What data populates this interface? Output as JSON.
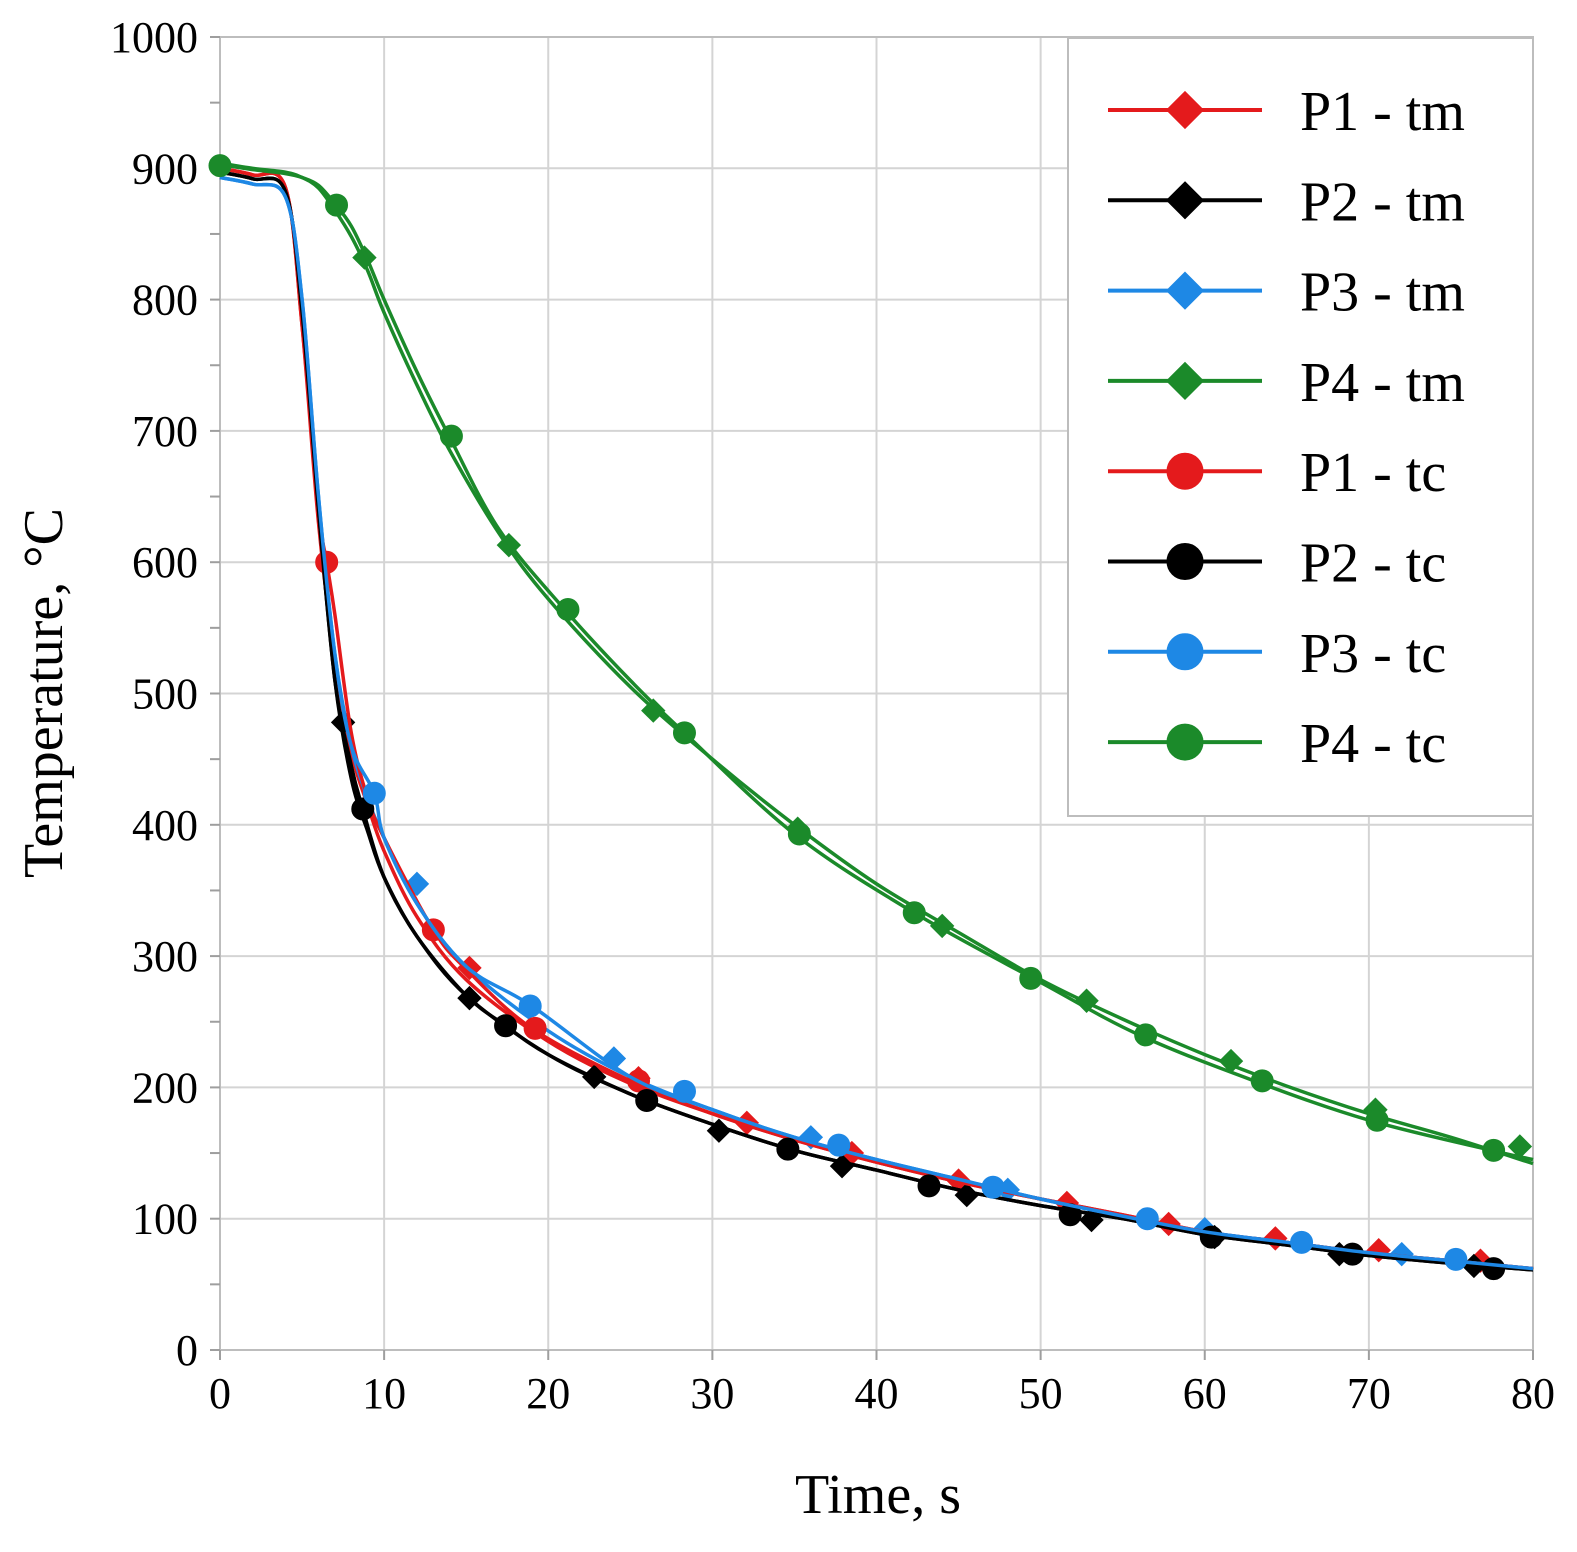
{
  "chart_data": {
    "type": "line",
    "xlabel": "Time, s",
    "ylabel": "Temperature, °C",
    "xlim": [
      0,
      80
    ],
    "ylim": [
      0,
      1000
    ],
    "xticks": [
      0,
      10,
      20,
      30,
      40,
      50,
      60,
      70,
      80
    ],
    "yticks": [
      0,
      100,
      200,
      300,
      400,
      500,
      600,
      700,
      800,
      900,
      1000
    ],
    "grid": true,
    "legend_position": "top-right",
    "series": [
      {
        "name": "P1 - tm",
        "color": "#e41a1c",
        "marker": "diamond",
        "x": [
          0,
          2,
          4,
          5,
          6,
          7,
          8,
          9,
          10,
          12,
          15,
          20,
          25,
          30,
          35,
          40,
          45,
          50,
          55,
          60,
          65,
          70,
          75,
          80
        ],
        "y": [
          900,
          895,
          885,
          780,
          630,
          525,
          455,
          415,
          380,
          330,
          282,
          235,
          203,
          180,
          160,
          143,
          128,
          115,
          103,
          90,
          82,
          74,
          68,
          62
        ],
        "marker_x": [
          15.2,
          25.5,
          32.1,
          38.5,
          45.0,
          51.6,
          57.8,
          64.3,
          70.6,
          76.8
        ],
        "marker_y": [
          291,
          207,
          173,
          150,
          129,
          112,
          96,
          85,
          76,
          68
        ]
      },
      {
        "name": "P2 - tm",
        "color": "#000000",
        "marker": "diamond",
        "x": [
          0,
          2,
          4,
          5,
          6,
          7,
          8,
          9,
          10,
          12,
          15,
          20,
          25,
          30,
          35,
          40,
          45,
          50,
          55,
          60,
          65,
          70,
          75,
          80
        ],
        "y": [
          897,
          892,
          882,
          790,
          640,
          510,
          435,
          395,
          360,
          315,
          270,
          225,
          195,
          172,
          152,
          137,
          122,
          110,
          100,
          88,
          80,
          72,
          66,
          61
        ],
        "marker_x": [
          7.5,
          15.2,
          22.8,
          30.4,
          37.9,
          45.5,
          53.1,
          60.6,
          68.2,
          76.4
        ],
        "marker_y": [
          478,
          268,
          208,
          167,
          140,
          118,
          99,
          86,
          73,
          64
        ]
      },
      {
        "name": "P3 - tm",
        "color": "#1e88e5",
        "marker": "diamond",
        "x": [
          0,
          2,
          4,
          5,
          6,
          7,
          8,
          9,
          10,
          12,
          15,
          20,
          25,
          30,
          35,
          40,
          45,
          50,
          55,
          60,
          65,
          70,
          75,
          80
        ],
        "y": [
          893,
          888,
          878,
          800,
          650,
          530,
          460,
          420,
          390,
          340,
          292,
          243,
          208,
          183,
          162,
          145,
          130,
          115,
          102,
          90,
          82,
          74,
          68,
          62
        ],
        "marker_x": [
          12.0,
          24.0,
          36.0,
          48.0,
          60.0,
          72.0
        ],
        "marker_y": [
          355,
          222,
          162,
          122,
          92,
          73
        ]
      },
      {
        "name": "P4 - tm",
        "color": "#1b8a2a",
        "marker": "diamond",
        "x": [
          0,
          2,
          4,
          5,
          6,
          7,
          8,
          9,
          10,
          12,
          14,
          17,
          20,
          25,
          30,
          35,
          40,
          45,
          50,
          55,
          60,
          65,
          70,
          75,
          80
        ],
        "y": [
          904,
          900,
          897,
          893,
          885,
          868,
          848,
          822,
          790,
          735,
          685,
          622,
          572,
          505,
          450,
          400,
          355,
          318,
          282,
          252,
          225,
          201,
          180,
          162,
          142
        ],
        "marker_x": [
          8.8,
          17.6,
          26.4,
          35.2,
          44.0,
          52.8,
          61.6,
          70.4,
          79.2
        ],
        "marker_y": [
          832,
          613,
          487,
          397,
          323,
          266,
          220,
          183,
          155
        ]
      },
      {
        "name": "P1 - tc",
        "color": "#e41a1c",
        "marker": "circle",
        "x": [
          0,
          2,
          4,
          5,
          6,
          6.5,
          7,
          8,
          9,
          10,
          13,
          15,
          19,
          25,
          30,
          35,
          40,
          45,
          50,
          55,
          60,
          65,
          70,
          75,
          80
        ],
        "y": [
          900,
          895,
          885,
          780,
          640,
          600,
          560,
          470,
          420,
          390,
          320,
          290,
          245,
          205,
          180,
          160,
          143,
          128,
          115,
          103,
          90,
          82,
          74,
          68,
          62
        ],
        "marker_x": [
          6.5,
          13.0,
          19.2,
          25.5
        ],
        "marker_y": [
          600,
          320,
          245,
          205
        ]
      },
      {
        "name": "P2 - tc",
        "color": "#000000",
        "marker": "circle",
        "x": [
          0,
          2,
          4,
          5,
          6,
          7,
          8,
          8.7,
          10,
          12,
          15,
          17.4,
          20,
          25,
          30,
          35,
          40,
          45,
          50,
          55,
          60,
          65,
          70,
          75,
          80
        ],
        "y": [
          897,
          892,
          882,
          790,
          640,
          510,
          445,
          412,
          360,
          315,
          270,
          247,
          225,
          195,
          172,
          152,
          137,
          122,
          110,
          100,
          88,
          80,
          72,
          66,
          61
        ],
        "marker_x": [
          8.7,
          17.4,
          26.0,
          34.6,
          43.2,
          51.8,
          60.4,
          69.0,
          77.6
        ],
        "marker_y": [
          412,
          247,
          190,
          153,
          125,
          103,
          86,
          73,
          62
        ]
      },
      {
        "name": "P3 - tc",
        "color": "#1e88e5",
        "marker": "circle",
        "x": [
          0,
          2,
          4,
          5,
          6,
          7,
          8,
          9.4,
          10,
          12,
          15,
          19,
          25,
          30,
          35,
          40,
          45,
          50,
          55,
          60,
          65,
          70,
          75,
          80
        ],
        "y": [
          893,
          888,
          878,
          800,
          650,
          530,
          460,
          424,
          390,
          340,
          292,
          262,
          208,
          183,
          162,
          145,
          130,
          115,
          102,
          90,
          82,
          74,
          68,
          62
        ],
        "marker_x": [
          9.4,
          18.9,
          28.3,
          37.7,
          47.1,
          56.5,
          65.9,
          75.3
        ],
        "marker_y": [
          424,
          262,
          197,
          156,
          124,
          100,
          82,
          69
        ]
      },
      {
        "name": "P4 - tc",
        "color": "#1b8a2a",
        "marker": "circle",
        "x": [
          0,
          2,
          4,
          5,
          6,
          7,
          8,
          9,
          10,
          12,
          14,
          17,
          21,
          25,
          28.3,
          35,
          42.3,
          50,
          56,
          63,
          70,
          77.5,
          80
        ],
        "y": [
          903,
          899,
          896,
          893,
          887,
          873,
          856,
          830,
          800,
          745,
          695,
          625,
          564,
          510,
          470,
          393,
          333,
          280,
          240,
          205,
          175,
          152,
          145
        ],
        "marker_x": [
          0,
          7.1,
          14.1,
          21.2,
          28.3,
          35.3,
          42.3,
          49.4,
          56.4,
          63.5,
          70.5,
          77.6
        ],
        "marker_y": [
          902,
          872,
          696,
          564,
          470,
          393,
          333,
          283,
          240,
          205,
          175,
          152
        ]
      }
    ]
  }
}
